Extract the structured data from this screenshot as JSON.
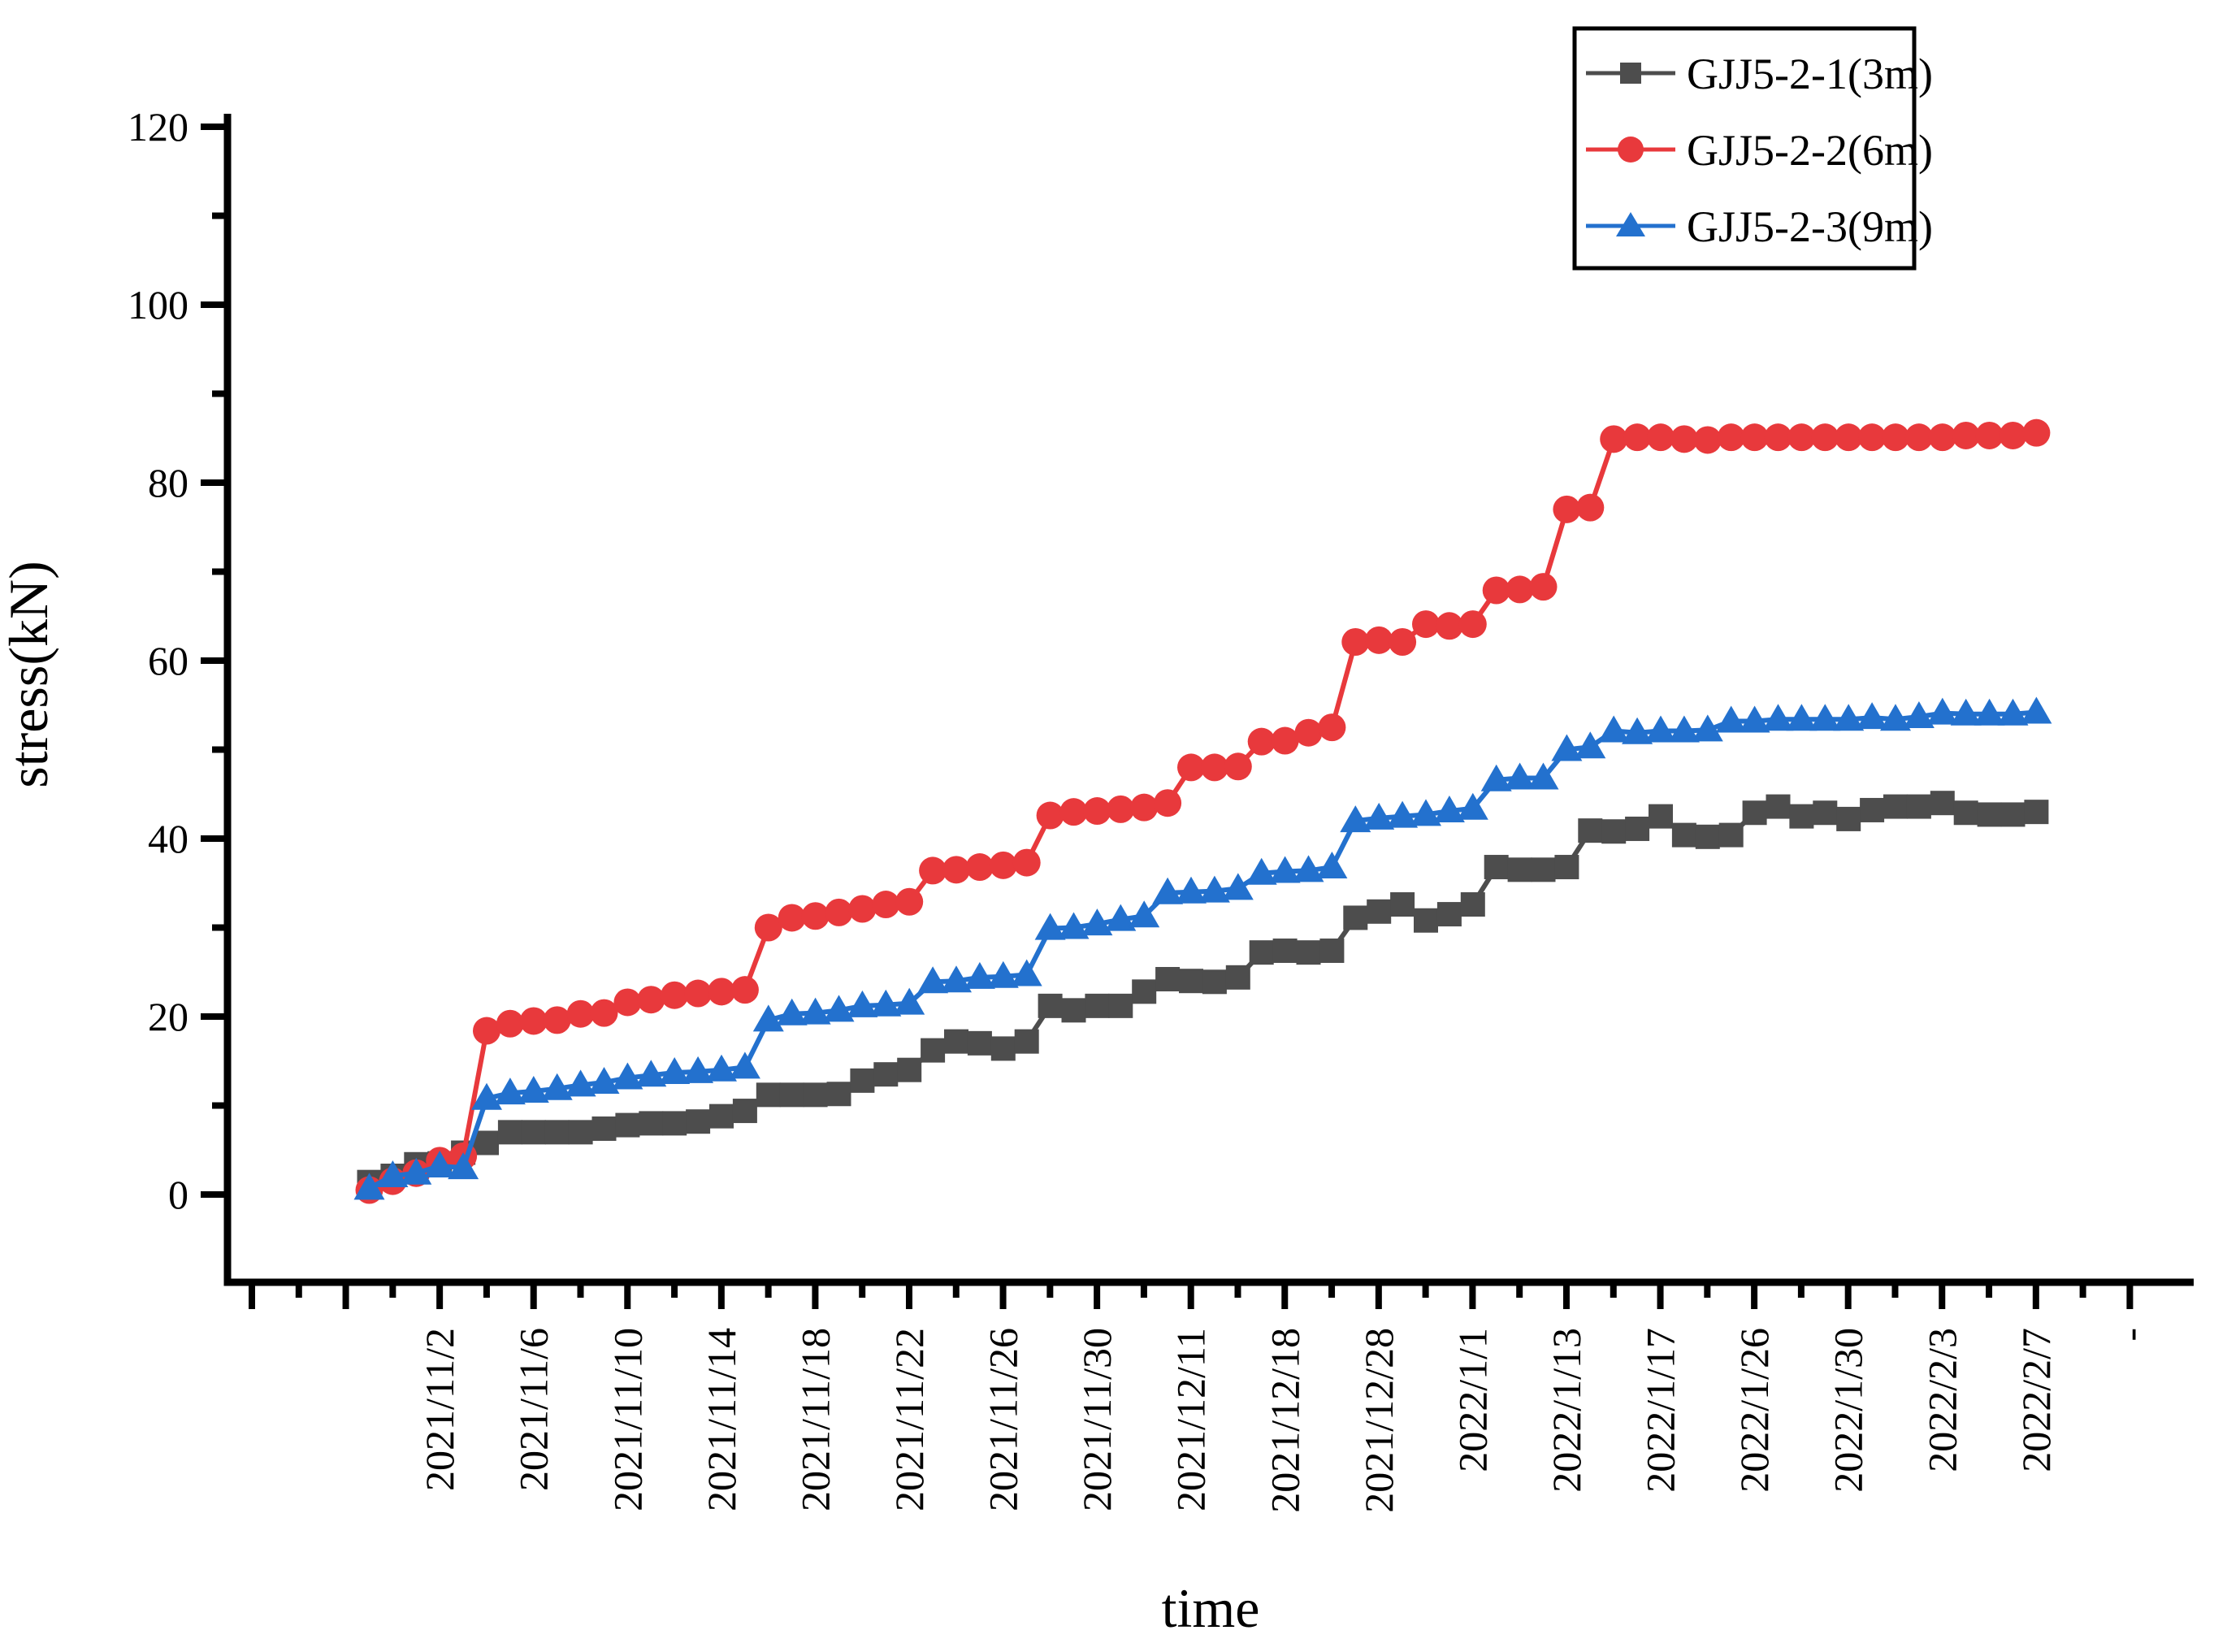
{
  "chart_data": {
    "type": "line",
    "title": "",
    "xlabel": "time",
    "ylabel": "stress(kN)",
    "ylim": [
      -10,
      122
    ],
    "y_ticks": [
      0,
      20,
      40,
      60,
      80,
      100,
      120
    ],
    "y_minor_ticks": [
      10,
      30,
      50,
      70,
      90,
      110
    ],
    "grid": "off",
    "legend_position": "top-right",
    "x_major_tick_labels": [
      "",
      "",
      "2021/11/2",
      "2021/11/6",
      "2021/11/10",
      "2021/11/14",
      "2021/11/18",
      "2021/11/22",
      "2021/11/26",
      "2021/11/30",
      "2021/12/11",
      "2021/12/18",
      "2021/12/28",
      "2022/1/1",
      "2022/1/13",
      "2022/1/17",
      "2022/1/26",
      "2022/1/30",
      "2022/2/3",
      "2022/2/7",
      "-"
    ],
    "points_per_label_interval": 4,
    "series": [
      {
        "name": "GJJ5-2-1(3m)",
        "color": "#4D4D4D",
        "marker": "square",
        "values": [
          1.4,
          2.1,
          3.4,
          3.5,
          4.7,
          5.8,
          7.0,
          7.0,
          7.0,
          7.0,
          7.4,
          7.8,
          8.0,
          8.0,
          8.2,
          8.8,
          9.4,
          11.2,
          11.2,
          11.2,
          11.3,
          12.8,
          13.5,
          14.0,
          16.2,
          17.2,
          17.0,
          16.4,
          17.2,
          21.2,
          20.7,
          21.2,
          21.2,
          22.8,
          24.2,
          24.0,
          23.9,
          24.4,
          27.2,
          27.4,
          27.2,
          27.4,
          31.1,
          31.8,
          32.6,
          30.8,
          31.5,
          32.6,
          36.8,
          36.5,
          36.5,
          36.8,
          40.9,
          40.8,
          41.1,
          42.5,
          40.4,
          40.2,
          40.4,
          42.9,
          43.6,
          42.5,
          42.9,
          42.2,
          43.2,
          43.6,
          43.6,
          44.0,
          42.9,
          42.7,
          42.7,
          43.0
        ]
      },
      {
        "name": "GJJ5-2-2(6m)",
        "color": "#E8393C",
        "marker": "circle",
        "values": [
          0.5,
          1.5,
          2.4,
          3.8,
          4.3,
          18.4,
          19.2,
          19.5,
          19.6,
          20.3,
          20.4,
          21.6,
          21.9,
          22.4,
          22.6,
          22.8,
          23.0,
          30.0,
          31.1,
          31.3,
          31.7,
          32.1,
          32.6,
          32.9,
          36.4,
          36.5,
          36.8,
          37.0,
          37.3,
          42.6,
          43.0,
          43.1,
          43.3,
          43.5,
          44.0,
          48.0,
          48.0,
          48.1,
          50.9,
          51.0,
          51.9,
          52.5,
          62.1,
          62.3,
          62.1,
          64.1,
          63.9,
          64.1,
          67.9,
          68.0,
          68.3,
          77.0,
          77.2,
          84.9,
          85.1,
          85.1,
          84.9,
          84.8,
          85.1,
          85.1,
          85.1,
          85.1,
          85.1,
          85.1,
          85.1,
          85.1,
          85.1,
          85.1,
          85.3,
          85.3,
          85.3,
          85.6
        ]
      },
      {
        "name": "GJJ5-2-3(9m)",
        "color": "#2371CE",
        "marker": "triangle",
        "values": [
          0.7,
          2.1,
          2.4,
          3.2,
          3.0,
          10.8,
          11.4,
          11.6,
          11.9,
          12.3,
          12.6,
          13.1,
          13.4,
          13.7,
          13.8,
          14.0,
          14.3,
          19.6,
          20.3,
          20.4,
          20.7,
          21.2,
          21.3,
          21.5,
          23.9,
          24.0,
          24.4,
          24.5,
          24.7,
          29.9,
          30.0,
          30.4,
          30.9,
          31.3,
          33.9,
          34.0,
          34.1,
          34.4,
          36.1,
          36.3,
          36.4,
          36.8,
          42.0,
          42.3,
          42.5,
          42.7,
          43.1,
          43.4,
          46.6,
          46.8,
          46.8,
          50.0,
          50.3,
          52.1,
          51.9,
          52.1,
          52.1,
          52.2,
          53.2,
          53.2,
          53.4,
          53.4,
          53.4,
          53.4,
          53.6,
          53.4,
          53.7,
          54.1,
          54.0,
          54.0,
          54.0,
          54.2
        ]
      }
    ],
    "axis_color": "#000000",
    "background_color": "#FFFFFF"
  },
  "legend": {
    "items": [
      {
        "label": "GJJ5-2-1(3m)"
      },
      {
        "label": "GJJ5-2-2(6m)"
      },
      {
        "label": "GJJ5-2-3(9m)"
      }
    ]
  },
  "axes": {
    "x_title": "time",
    "y_title": "stress(kN)"
  }
}
